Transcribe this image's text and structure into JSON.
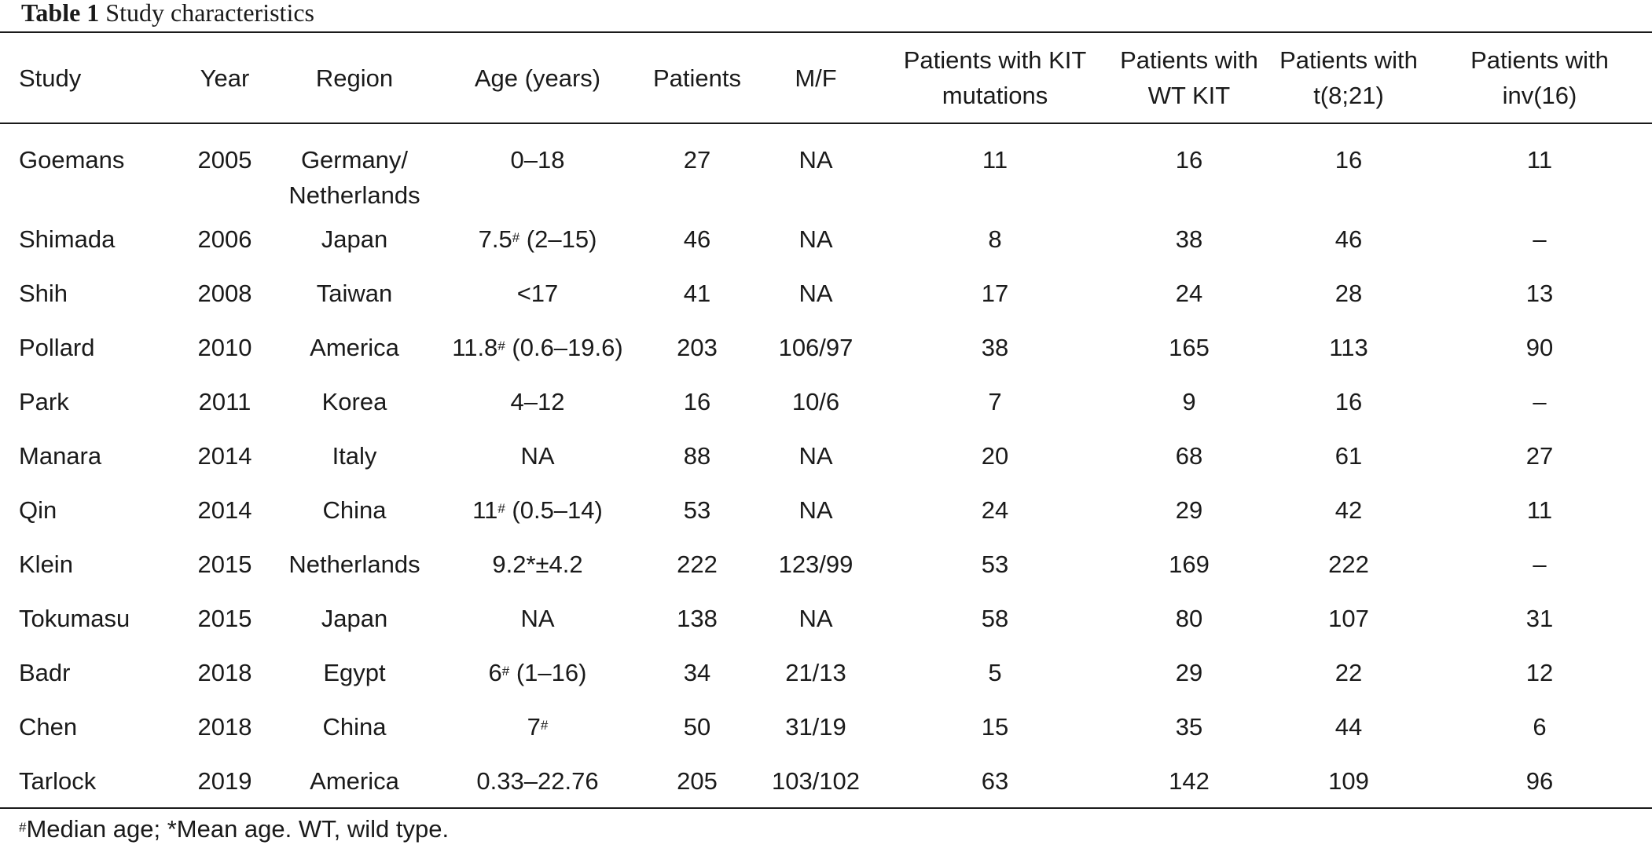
{
  "caption": {
    "label": "Table 1",
    "title": "Study characteristics"
  },
  "table": {
    "headers": [
      {
        "line1": "Study",
        "line2": ""
      },
      {
        "line1": "Year",
        "line2": ""
      },
      {
        "line1": "Region",
        "line2": ""
      },
      {
        "line1": "Age (years)",
        "line2": ""
      },
      {
        "line1": "Patients",
        "line2": ""
      },
      {
        "line1": "M/F",
        "line2": ""
      },
      {
        "line1": "Patients with KIT",
        "line2": "mutations"
      },
      {
        "line1": "Patients with",
        "line2": "WT KIT"
      },
      {
        "line1": "Patients with",
        "line2": "t(8;21)"
      },
      {
        "line1": "Patients with",
        "line2": "inv(16)"
      }
    ],
    "rows": [
      {
        "study": "Goemans",
        "year": "2005",
        "region": "Germany/",
        "region2": "Netherlands",
        "age": "0–18",
        "age_sup": "",
        "age_rest": "",
        "patients": "27",
        "mf": "NA",
        "kit": "11",
        "wt": "16",
        "t821": "16",
        "inv16": "11"
      },
      {
        "study": "Shimada",
        "year": "2006",
        "region": "Japan",
        "region2": "",
        "age": "7.5",
        "age_sup": "#",
        "age_rest": " (2–15)",
        "patients": "46",
        "mf": "NA",
        "kit": "8",
        "wt": "38",
        "t821": "46",
        "inv16": "–"
      },
      {
        "study": "Shih",
        "year": "2008",
        "region": "Taiwan",
        "region2": "",
        "age": "<17",
        "age_sup": "",
        "age_rest": "",
        "patients": "41",
        "mf": "NA",
        "kit": "17",
        "wt": "24",
        "t821": "28",
        "inv16": "13"
      },
      {
        "study": "Pollard",
        "year": "2010",
        "region": "America",
        "region2": "",
        "age": "11.8",
        "age_sup": "#",
        "age_rest": " (0.6–19.6)",
        "patients": "203",
        "mf": "106/97",
        "kit": "38",
        "wt": "165",
        "t821": "113",
        "inv16": "90"
      },
      {
        "study": "Park",
        "year": "2011",
        "region": "Korea",
        "region2": "",
        "age": "4–12",
        "age_sup": "",
        "age_rest": "",
        "patients": "16",
        "mf": "10/6",
        "kit": "7",
        "wt": "9",
        "t821": "16",
        "inv16": "–"
      },
      {
        "study": "Manara",
        "year": "2014",
        "region": "Italy",
        "region2": "",
        "age": "NA",
        "age_sup": "",
        "age_rest": "",
        "patients": "88",
        "mf": "NA",
        "kit": "20",
        "wt": "68",
        "t821": "61",
        "inv16": "27"
      },
      {
        "study": "Qin",
        "year": "2014",
        "region": "China",
        "region2": "",
        "age": "11",
        "age_sup": "#",
        "age_rest": " (0.5–14)",
        "patients": "53",
        "mf": "NA",
        "kit": "24",
        "wt": "29",
        "t821": "42",
        "inv16": "11"
      },
      {
        "study": "Klein",
        "year": "2015",
        "region": "Netherlands",
        "region2": "",
        "age": "9.2*±4.2",
        "age_sup": "",
        "age_rest": "",
        "patients": "222",
        "mf": "123/99",
        "kit": "53",
        "wt": "169",
        "t821": "222",
        "inv16": "–"
      },
      {
        "study": "Tokumasu",
        "year": "2015",
        "region": "Japan",
        "region2": "",
        "age": "NA",
        "age_sup": "",
        "age_rest": "",
        "patients": "138",
        "mf": "NA",
        "kit": "58",
        "wt": "80",
        "t821": "107",
        "inv16": "31"
      },
      {
        "study": "Badr",
        "year": "2018",
        "region": "Egypt",
        "region2": "",
        "age": "6",
        "age_sup": "#",
        "age_rest": " (1–16)",
        "patients": "34",
        "mf": "21/13",
        "kit": "5",
        "wt": "29",
        "t821": "22",
        "inv16": "12"
      },
      {
        "study": "Chen",
        "year": "2018",
        "region": "China",
        "region2": "",
        "age": "7",
        "age_sup": "#",
        "age_rest": "",
        "patients": "50",
        "mf": "31/19",
        "kit": "15",
        "wt": "35",
        "t821": "44",
        "inv16": "6"
      },
      {
        "study": "Tarlock",
        "year": "2019",
        "region": "America",
        "region2": "",
        "age": "0.33–22.76",
        "age_sup": "",
        "age_rest": "",
        "patients": "205",
        "mf": "103/102",
        "kit": "63",
        "wt": "142",
        "t821": "109",
        "inv16": "96"
      }
    ]
  },
  "footnote": {
    "sup": "#",
    "text": "Median age; *Mean age. WT, wild type."
  }
}
